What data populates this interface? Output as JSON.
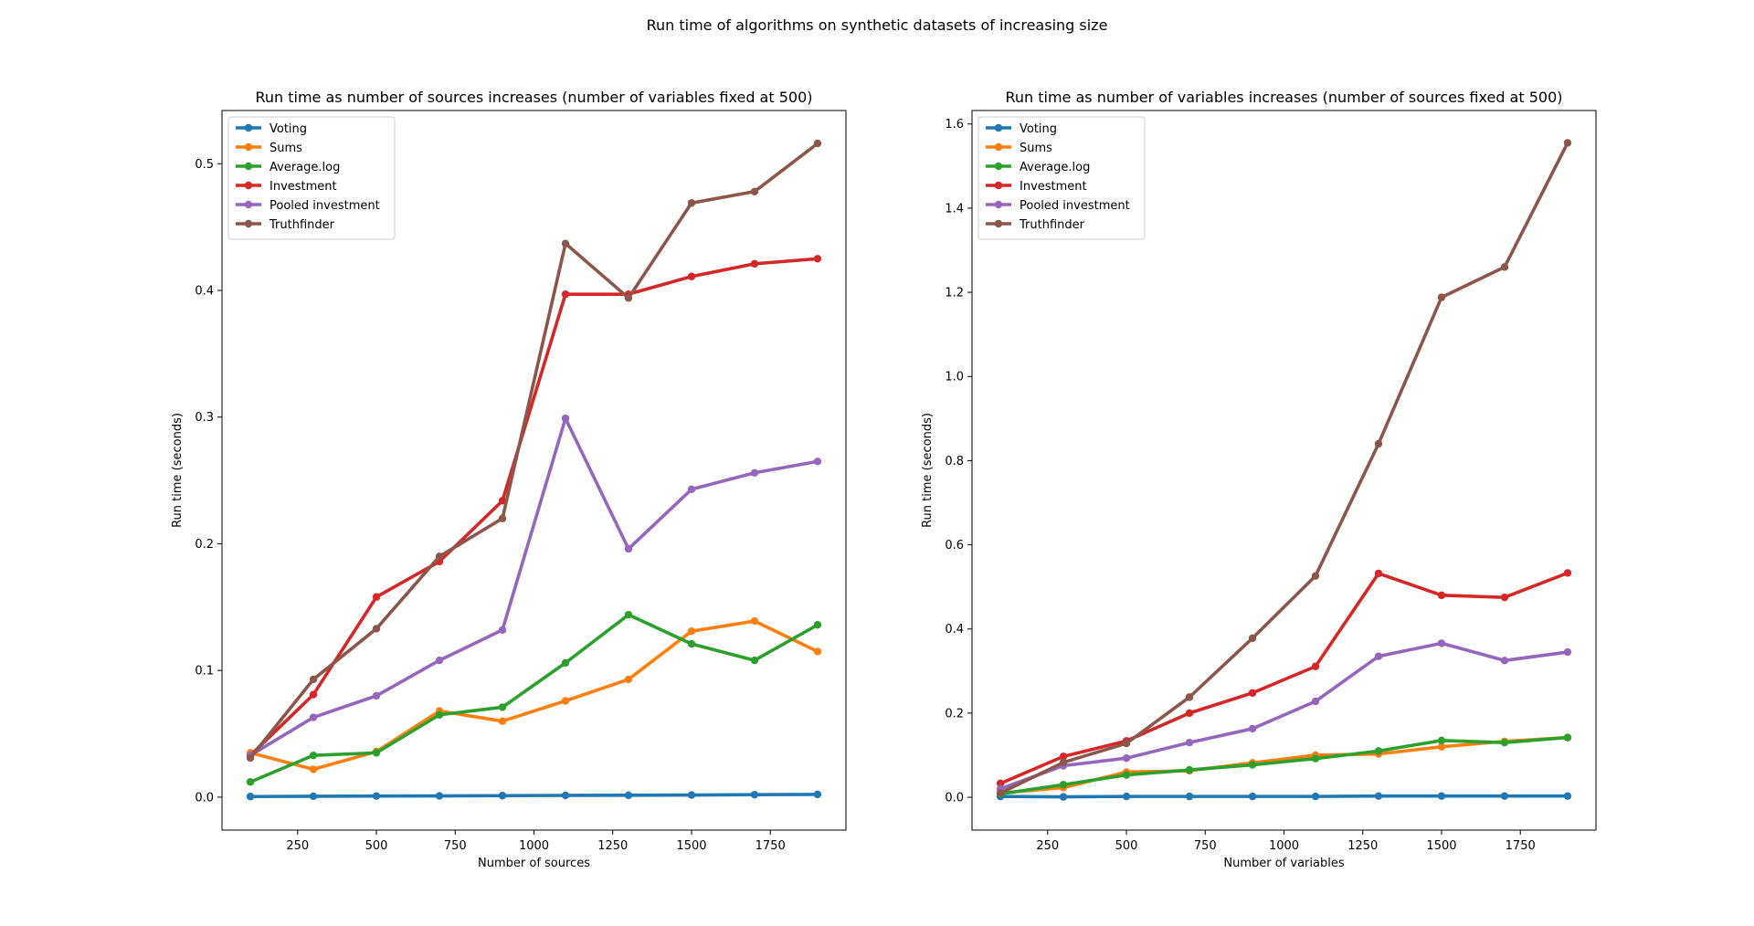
{
  "figure": {
    "suptitle": "Run time of algorithms on synthetic datasets of increasing size"
  },
  "chart_data": [
    {
      "type": "line",
      "title": "Run time as number of sources increases (number of variables fixed at 500)",
      "xlabel": "Number of sources",
      "ylabel": "Run time (seconds)",
      "x": [
        100,
        300,
        500,
        700,
        900,
        1100,
        1300,
        1500,
        1700,
        1900
      ],
      "xlim": [
        10,
        1990
      ],
      "ylim": [
        -0.026,
        0.542
      ],
      "xticks": [
        250,
        500,
        750,
        1000,
        1250,
        1500,
        1750
      ],
      "xtick_labels": [
        "250",
        "500",
        "750",
        "1000",
        "1250",
        "1500",
        "1750"
      ],
      "yticks": [
        0.0,
        0.1,
        0.2,
        0.3,
        0.4,
        0.5
      ],
      "ytick_labels": [
        "0.0",
        "0.1",
        "0.2",
        "0.3",
        "0.4",
        "0.5"
      ],
      "grid": false,
      "legend_position": "top-left",
      "series": [
        {
          "name": "Voting",
          "color": "#1f77b4",
          "values": [
            0.0005,
            0.0007,
            0.0009,
            0.001,
            0.0012,
            0.0014,
            0.0015,
            0.0017,
            0.002,
            0.0022
          ]
        },
        {
          "name": "Sums",
          "color": "#ff7f0e",
          "values": [
            0.035,
            0.022,
            0.036,
            0.068,
            0.06,
            0.076,
            0.093,
            0.131,
            0.139,
            0.115
          ]
        },
        {
          "name": "Average.log",
          "color": "#2ca02c",
          "values": [
            0.012,
            0.033,
            0.035,
            0.065,
            0.071,
            0.106,
            0.144,
            0.121,
            0.108,
            0.136
          ]
        },
        {
          "name": "Investment",
          "color": "#d62728",
          "values": [
            0.033,
            0.081,
            0.158,
            0.186,
            0.234,
            0.397,
            0.397,
            0.411,
            0.421,
            0.425
          ]
        },
        {
          "name": "Pooled investment",
          "color": "#9467bd",
          "values": [
            0.033,
            0.063,
            0.08,
            0.108,
            0.132,
            0.299,
            0.196,
            0.243,
            0.256,
            0.265
          ]
        },
        {
          "name": "Truthfinder",
          "color": "#8c564b",
          "values": [
            0.031,
            0.093,
            0.133,
            0.19,
            0.22,
            0.437,
            0.394,
            0.469,
            0.478,
            0.516
          ]
        }
      ]
    },
    {
      "type": "line",
      "title": "Run time as number of variables increases (number of sources fixed at 500)",
      "xlabel": "Number of variables",
      "ylabel": "Run time (seconds)",
      "x": [
        100,
        300,
        500,
        700,
        900,
        1100,
        1300,
        1500,
        1700,
        1900
      ],
      "xlim": [
        10,
        1990
      ],
      "ylim": [
        -0.078,
        1.632
      ],
      "xticks": [
        250,
        500,
        750,
        1000,
        1250,
        1500,
        1750
      ],
      "xtick_labels": [
        "250",
        "500",
        "750",
        "1000",
        "1250",
        "1500",
        "1750"
      ],
      "yticks": [
        0.0,
        0.2,
        0.4,
        0.6,
        0.8,
        1.0,
        1.2,
        1.4,
        1.6
      ],
      "ytick_labels": [
        "0.0",
        "0.2",
        "0.4",
        "0.6",
        "0.8",
        "1.0",
        "1.2",
        "1.4",
        "1.6"
      ],
      "grid": false,
      "legend_position": "top-left",
      "series": [
        {
          "name": "Voting",
          "color": "#1f77b4",
          "values": [
            0.002,
            0.001,
            0.002,
            0.002,
            0.002,
            0.002,
            0.003,
            0.003,
            0.003,
            0.003
          ]
        },
        {
          "name": "Sums",
          "color": "#ff7f0e",
          "values": [
            0.01,
            0.023,
            0.06,
            0.063,
            0.082,
            0.1,
            0.103,
            0.12,
            0.133,
            0.142
          ]
        },
        {
          "name": "Average.log",
          "color": "#2ca02c",
          "values": [
            0.008,
            0.03,
            0.053,
            0.065,
            0.077,
            0.092,
            0.11,
            0.135,
            0.13,
            0.142
          ]
        },
        {
          "name": "Investment",
          "color": "#d62728",
          "values": [
            0.033,
            0.097,
            0.134,
            0.2,
            0.248,
            0.311,
            0.532,
            0.48,
            0.475,
            0.533
          ]
        },
        {
          "name": "Pooled investment",
          "color": "#9467bd",
          "values": [
            0.02,
            0.075,
            0.093,
            0.13,
            0.163,
            0.228,
            0.335,
            0.366,
            0.325,
            0.345
          ]
        },
        {
          "name": "Truthfinder",
          "color": "#8c564b",
          "values": [
            0.01,
            0.083,
            0.128,
            0.238,
            0.378,
            0.526,
            0.84,
            1.188,
            1.26,
            1.555
          ]
        }
      ]
    }
  ]
}
